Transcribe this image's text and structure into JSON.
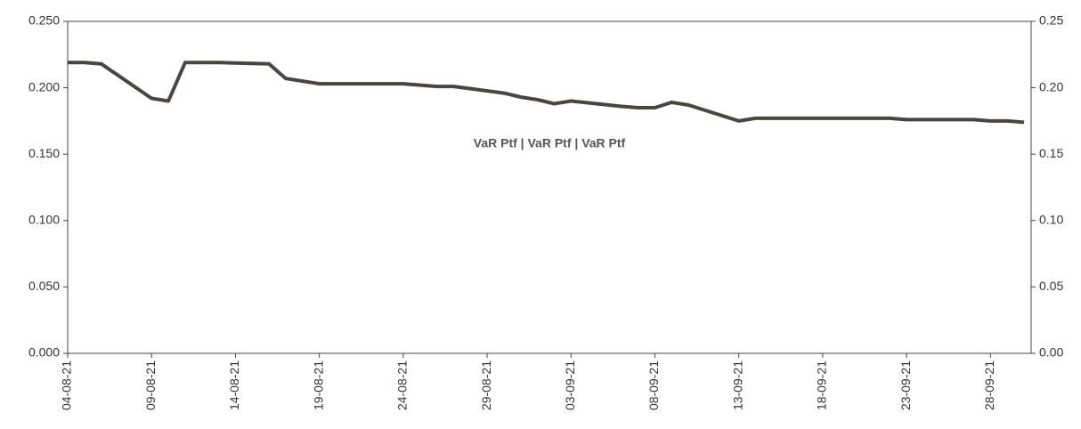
{
  "chart_data": {
    "type": "line",
    "legend": "VaR Ptf | VaR Ptf | VaR Ptf",
    "x": [
      "04-08-21",
      "05-08-21",
      "06-08-21",
      "09-08-21",
      "10-08-21",
      "11-08-21",
      "12-08-21",
      "13-08-21",
      "16-08-21",
      "17-08-21",
      "18-08-21",
      "19-08-21",
      "20-08-21",
      "23-08-21",
      "24-08-21",
      "25-08-21",
      "26-08-21",
      "27-08-21",
      "30-08-21",
      "31-08-21",
      "01-09-21",
      "02-09-21",
      "03-09-21",
      "06-09-21",
      "07-09-21",
      "08-09-21",
      "09-09-21",
      "10-09-21",
      "13-09-21",
      "14-09-21",
      "15-09-21",
      "16-09-21",
      "17-09-21",
      "20-09-21",
      "21-09-21",
      "22-09-21",
      "23-09-21",
      "24-09-21",
      "27-09-21",
      "28-09-21",
      "29-09-21",
      "30-09-21"
    ],
    "series": [
      {
        "name": "VaR Ptf",
        "color": "#4a4540",
        "values": [
          0.219,
          0.219,
          0.218,
          0.192,
          0.19,
          0.219,
          0.219,
          0.219,
          0.218,
          0.207,
          0.205,
          0.203,
          0.203,
          0.203,
          0.203,
          0.202,
          0.201,
          0.201,
          0.196,
          0.193,
          0.191,
          0.188,
          0.19,
          0.186,
          0.185,
          0.185,
          0.189,
          0.187,
          0.175,
          0.177,
          0.177,
          0.177,
          0.177,
          0.177,
          0.177,
          0.177,
          0.176,
          0.176,
          0.176,
          0.175,
          0.175,
          0.174
        ]
      }
    ],
    "xlim": [
      "04-08-21",
      "30-09-21"
    ],
    "xticks": [
      "04-08-21",
      "09-08-21",
      "14-08-21",
      "19-08-21",
      "24-08-21",
      "29-08-21",
      "03-09-21",
      "08-09-21",
      "13-09-21",
      "18-09-21",
      "23-09-21",
      "28-09-21"
    ],
    "ylim": [
      0,
      0.25
    ],
    "yticks": [
      {
        "value": 0,
        "label": "0.000"
      },
      {
        "value": 0.05,
        "label": "0.050"
      },
      {
        "value": 0.1,
        "label": "0.100"
      },
      {
        "value": 0.15,
        "label": "0.150"
      },
      {
        "value": 0.2,
        "label": "0.200"
      },
      {
        "value": 0.25,
        "label": "0.250"
      }
    ],
    "y2lim": [
      0,
      0.25
    ],
    "y2ticks": [
      {
        "value": 0,
        "label": "0.00"
      },
      {
        "value": 0.05,
        "label": "0.05"
      },
      {
        "value": 0.1,
        "label": "0.10"
      },
      {
        "value": 0.15,
        "label": "0.15"
      },
      {
        "value": 0.2,
        "label": "0.20"
      },
      {
        "value": 0.25,
        "label": "0.25"
      }
    ],
    "grid": false
  }
}
